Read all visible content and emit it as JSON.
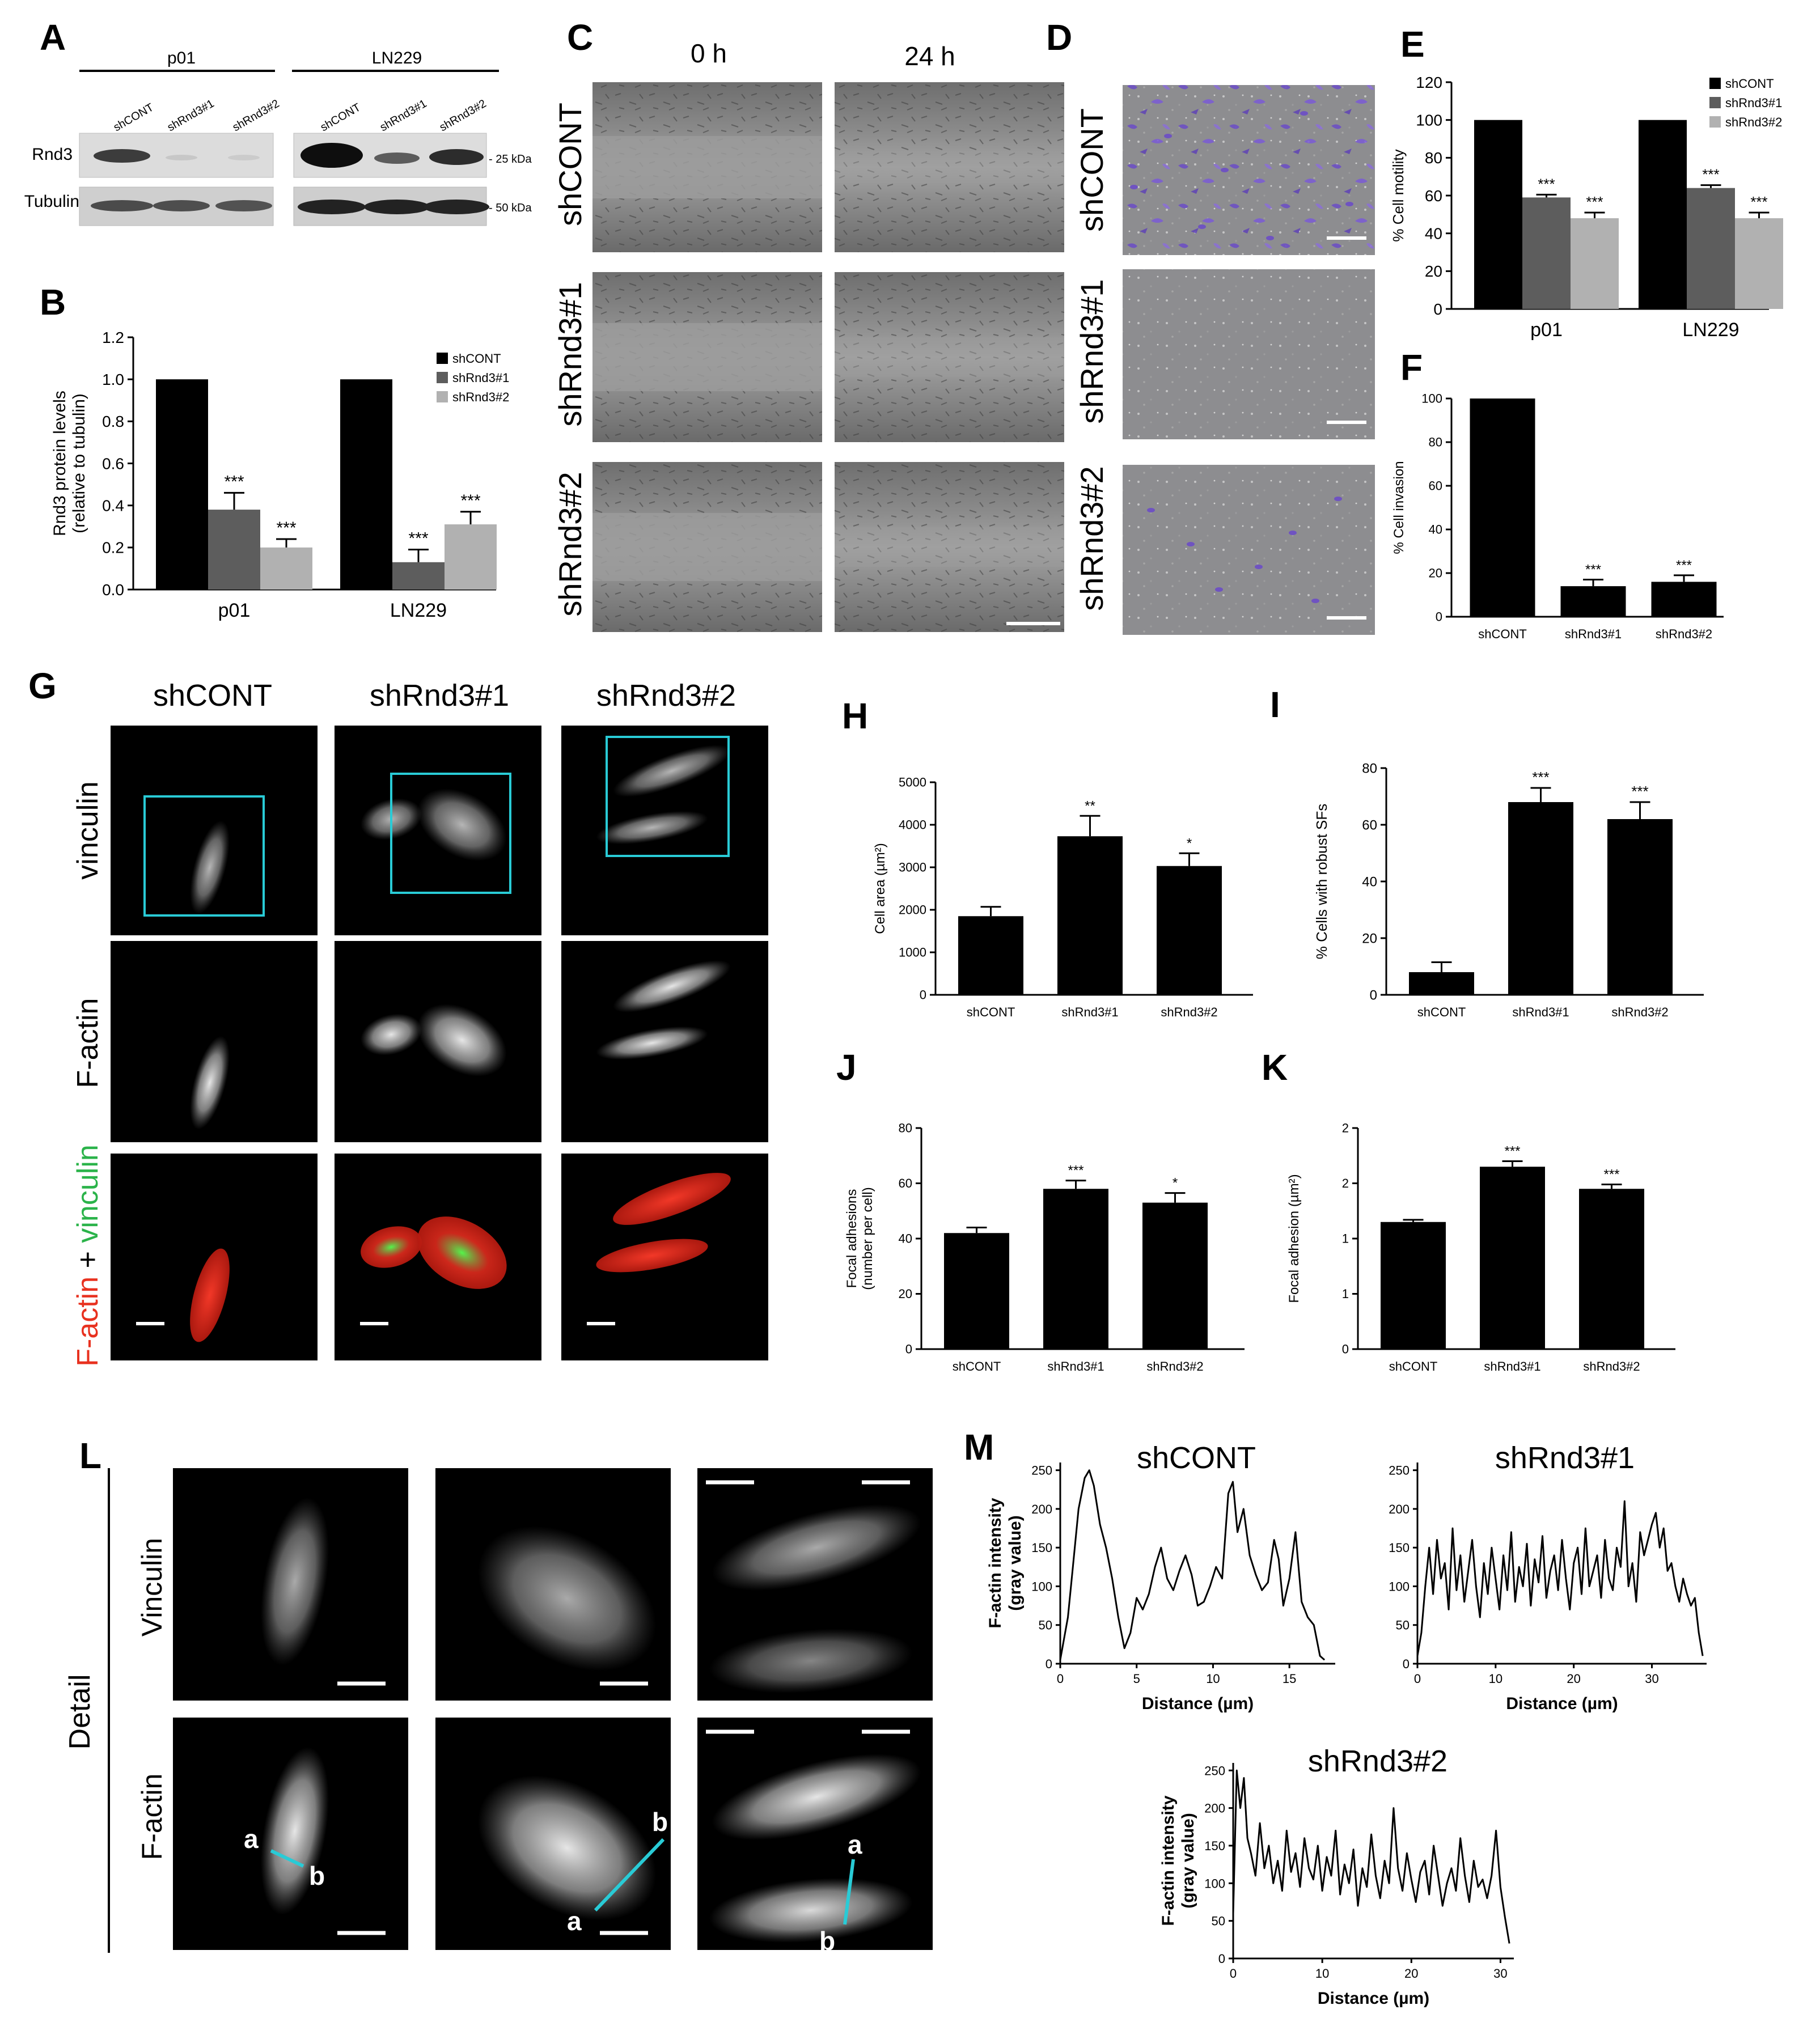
{
  "panel_letters": {
    "A": "A",
    "B": "B",
    "C": "C",
    "D": "D",
    "E": "E",
    "F": "F",
    "G": "G",
    "H": "H",
    "I": "I",
    "J": "J",
    "K": "K",
    "L": "L",
    "M": "M"
  },
  "blot": {
    "groups": [
      "p01",
      "LN229"
    ],
    "lanes": [
      "shCONT",
      "shRnd3#1",
      "shRnd3#2"
    ],
    "rows": [
      "Rnd3",
      "Tubulin"
    ],
    "markers": [
      "- 25 kDa",
      "- 50 kDa"
    ]
  },
  "scratch": {
    "times": [
      "0 h",
      "24 h"
    ],
    "rows": [
      "shCONT",
      "shRnd3#1",
      "shRnd3#2"
    ]
  },
  "transwell": {
    "rows": [
      "shCONT",
      "shRnd3#1",
      "shRnd3#2"
    ]
  },
  "staining": {
    "columns": [
      "shCONT",
      "shRnd3#1",
      "shRnd3#2"
    ],
    "rows": [
      "vinculin",
      "F-actin"
    ],
    "merge_label": {
      "a": "F-actin",
      "b": " + ",
      "c": "vinculin"
    },
    "colors": {
      "red": "#e8311f",
      "green": "#2bb34a",
      "cyan": "#29cbd6"
    }
  },
  "detail": {
    "side_label": "Detail",
    "rows": [
      "Vinculin",
      "F-actin"
    ],
    "line_a": "a",
    "line_b": "b"
  },
  "chart_data": [
    {
      "id": "B",
      "type": "bar",
      "categories": [
        "p01",
        "LN229"
      ],
      "series": [
        {
          "name": "shCONT",
          "values": [
            1.0,
            1.0
          ],
          "err": [
            0,
            0
          ],
          "sig": [
            "",
            ""
          ]
        },
        {
          "name": "shRnd3#1",
          "values": [
            0.38,
            0.13
          ],
          "err": [
            0.08,
            0.06
          ],
          "sig": [
            "***",
            "***"
          ]
        },
        {
          "name": "shRnd3#2",
          "values": [
            0.2,
            0.31
          ],
          "err": [
            0.04,
            0.06
          ],
          "sig": [
            "***",
            "***"
          ]
        }
      ],
      "ylabel": "Rnd3 protein levels",
      "ylabel2": "(relative to tubulin)",
      "ylim": [
        0,
        1.2
      ],
      "yticks": [
        "0.0",
        "0.2",
        "0.4",
        "0.6",
        "0.8",
        "1.0",
        "1.2"
      ],
      "legend": "right"
    },
    {
      "id": "E",
      "type": "bar",
      "categories": [
        "p01",
        "LN229"
      ],
      "series": [
        {
          "name": "shCONT",
          "values": [
            100,
            100
          ],
          "err": [
            0,
            0
          ],
          "sig": [
            "",
            ""
          ]
        },
        {
          "name": "shRnd3#1",
          "values": [
            59,
            64
          ],
          "err": [
            1.5,
            1.5
          ],
          "sig": [
            "***",
            "***"
          ]
        },
        {
          "name": "shRnd3#2",
          "values": [
            48,
            48
          ],
          "err": [
            3,
            3
          ],
          "sig": [
            "***",
            "***"
          ]
        }
      ],
      "ylabel": "% Cell motility",
      "ylim": [
        0,
        120
      ],
      "yticks": [
        "0",
        "20",
        "40",
        "60",
        "80",
        "100",
        "120"
      ],
      "legend": "top-right"
    },
    {
      "id": "F",
      "type": "bar",
      "categories": [
        "shCONT",
        "shRnd3#1",
        "shRnd3#2"
      ],
      "values": [
        100,
        14,
        16
      ],
      "err": [
        0,
        3,
        3
      ],
      "sig": [
        "",
        "***",
        "***"
      ],
      "ylabel": "% Cell invasion",
      "ylim": [
        0,
        100
      ],
      "yticks": [
        "0",
        "20",
        "40",
        "60",
        "80",
        "100"
      ]
    },
    {
      "id": "H",
      "type": "bar",
      "categories": [
        "shCONT",
        "shRnd3#1",
        "shRnd3#2"
      ],
      "values": [
        1850,
        3730,
        3030
      ],
      "err": [
        220,
        480,
        300
      ],
      "sig": [
        "",
        "**",
        "*"
      ],
      "ylabel": "Cell area (µm²)",
      "ylim": [
        0,
        5000
      ],
      "yticks": [
        "0",
        "1000",
        "2000",
        "3000",
        "4000",
        "5000"
      ]
    },
    {
      "id": "I",
      "type": "bar",
      "categories": [
        "shCONT",
        "shRnd3#1",
        "shRnd3#2"
      ],
      "values": [
        8,
        68,
        62
      ],
      "err": [
        3.5,
        5,
        6
      ],
      "sig": [
        "",
        "***",
        "***"
      ],
      "ylabel": "% Cells with robust SFs",
      "ylim": [
        0,
        80
      ],
      "yticks": [
        "0",
        "20",
        "40",
        "60",
        "80"
      ]
    },
    {
      "id": "J",
      "type": "bar",
      "categories": [
        "shCONT",
        "shRnd3#1",
        "shRnd3#2"
      ],
      "values": [
        42,
        58,
        53
      ],
      "err": [
        2,
        3,
        3.5
      ],
      "sig": [
        "",
        "***",
        "*"
      ],
      "ylabel": "Focal adhesions",
      "ylabel2": "(number per cell)",
      "ylim": [
        0,
        80
      ],
      "yticks": [
        "0",
        "20",
        "40",
        "60",
        "80"
      ]
    },
    {
      "id": "K",
      "type": "bar",
      "categories": [
        "shCONT",
        "shRnd3#1",
        "shRnd3#2"
      ],
      "values": [
        1.15,
        1.65,
        1.45
      ],
      "err": [
        0.02,
        0.05,
        0.04
      ],
      "sig": [
        "",
        "***",
        "***"
      ],
      "ylabel": "Focal adhesion (µm²)",
      "ylim": [
        0,
        2
      ],
      "yticks": [
        "0",
        "1",
        "1",
        "2",
        "2"
      ]
    },
    {
      "id": "M1",
      "type": "line",
      "title": "shCONT",
      "xlabel": "Distance (µm)",
      "ylabel": "F-actin intensity",
      "ylabel2": "(gray value)",
      "xlim": [
        0,
        18
      ],
      "ylim": [
        0,
        260
      ],
      "xticks": [
        "0",
        "5",
        "10",
        "15"
      ],
      "yticks": [
        "0",
        "50",
        "100",
        "150",
        "200",
        "250"
      ],
      "x": [
        0,
        0.5,
        0.8,
        1.2,
        1.6,
        1.9,
        2.2,
        2.6,
        3,
        3.4,
        3.8,
        4.2,
        4.6,
        5,
        5.4,
        5.8,
        6.2,
        6.6,
        7,
        7.4,
        7.8,
        8.2,
        8.6,
        9,
        9.4,
        9.8,
        10.2,
        10.6,
        11,
        11.3,
        11.6,
        12,
        12.4,
        12.8,
        13.2,
        13.6,
        14,
        14.3,
        14.6,
        15,
        15.4,
        15.8,
        16.2,
        16.6,
        17,
        17.3
      ],
      "y": [
        5,
        60,
        120,
        200,
        240,
        250,
        230,
        180,
        150,
        110,
        60,
        20,
        40,
        85,
        70,
        90,
        125,
        150,
        110,
        95,
        120,
        140,
        115,
        75,
        80,
        100,
        125,
        110,
        220,
        235,
        170,
        200,
        140,
        115,
        95,
        105,
        160,
        135,
        75,
        110,
        170,
        80,
        60,
        50,
        10,
        5
      ]
    },
    {
      "id": "M2",
      "type": "line",
      "title": "shRnd3#1",
      "xlabel": "Distance (µm)",
      "ylabel": "",
      "ylabel2": "",
      "xlim": [
        0,
        37
      ],
      "ylim": [
        0,
        260
      ],
      "xticks": [
        "0",
        "10",
        "20",
        "30"
      ],
      "yticks": [
        "0",
        "50",
        "100",
        "150",
        "200",
        "250"
      ],
      "x": [
        0,
        0.5,
        1,
        1.5,
        2,
        2.5,
        3,
        3.5,
        4,
        4.5,
        5,
        5.5,
        6,
        6.5,
        7,
        7.5,
        8,
        8.5,
        9,
        9.5,
        10,
        10.5,
        11,
        11.5,
        12,
        12.5,
        13,
        13.5,
        14,
        14.5,
        15,
        15.5,
        16,
        16.5,
        17,
        17.5,
        18,
        18.5,
        19,
        19.5,
        20,
        20.5,
        21,
        21.5,
        22,
        22.5,
        23,
        23.5,
        24,
        24.5,
        25,
        25.5,
        26,
        26.5,
        27,
        27.5,
        28,
        28.5,
        29,
        29.5,
        30,
        30.5,
        31,
        31.5,
        32,
        32.5,
        33,
        33.5,
        34,
        34.5,
        35,
        35.5,
        36,
        36.5
      ],
      "y": [
        10,
        40,
        100,
        150,
        90,
        160,
        110,
        130,
        70,
        175,
        95,
        140,
        80,
        120,
        160,
        100,
        60,
        130,
        90,
        150,
        110,
        70,
        140,
        95,
        170,
        80,
        125,
        100,
        155,
        75,
        135,
        105,
        165,
        85,
        120,
        140,
        95,
        160,
        110,
        70,
        130,
        150,
        90,
        175,
        100,
        120,
        140,
        85,
        160,
        110,
        95,
        150,
        125,
        210,
        100,
        130,
        80,
        170,
        140,
        160,
        180,
        195,
        150,
        175,
        120,
        130,
        100,
        80,
        110,
        90,
        75,
        85,
        40,
        10
      ]
    },
    {
      "id": "M3",
      "type": "line",
      "title": "shRnd3#2",
      "xlabel": "Distance (µm)",
      "ylabel": "F-actin intensity",
      "ylabel2": "(gray value)",
      "xlim": [
        0,
        31.5
      ],
      "ylim": [
        0,
        260
      ],
      "xticks": [
        "0",
        "10",
        "20",
        "30"
      ],
      "yticks": [
        "0",
        "50",
        "100",
        "150",
        "200",
        "250"
      ],
      "x": [
        0,
        0.4,
        0.8,
        1.2,
        1.6,
        2,
        2.5,
        3,
        3.5,
        4,
        4.5,
        5,
        5.5,
        6,
        6.5,
        7,
        7.5,
        8,
        8.5,
        9,
        9.5,
        10,
        10.5,
        11,
        11.5,
        12,
        12.5,
        13,
        13.5,
        14,
        14.5,
        15,
        15.5,
        16,
        16.5,
        17,
        17.5,
        18,
        18.5,
        19,
        19.5,
        20,
        20.5,
        21,
        21.5,
        22,
        22.5,
        23,
        23.5,
        24,
        24.5,
        25,
        25.5,
        26,
        26.5,
        27,
        27.5,
        28,
        28.5,
        29,
        29.5,
        30,
        30.5,
        31
      ],
      "y": [
        60,
        250,
        200,
        240,
        160,
        140,
        110,
        180,
        120,
        150,
        100,
        130,
        90,
        170,
        115,
        140,
        95,
        160,
        120,
        105,
        150,
        90,
        135,
        110,
        170,
        85,
        125,
        100,
        145,
        70,
        120,
        95,
        165,
        110,
        80,
        130,
        100,
        200,
        120,
        90,
        140,
        105,
        75,
        115,
        130,
        85,
        150,
        110,
        70,
        100,
        120,
        90,
        160,
        110,
        75,
        130,
        95,
        105,
        80,
        110,
        170,
        95,
        55,
        20
      ]
    }
  ]
}
